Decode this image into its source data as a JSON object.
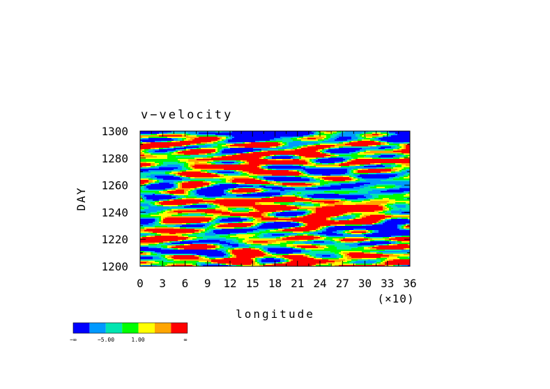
{
  "chart_data": {
    "type": "heatmap",
    "title": "v−velocity",
    "xlabel": "longitude",
    "ylabel": "DAY",
    "x_multiplier_label": "(×10)",
    "xlim": [
      0,
      36
    ],
    "ylim": [
      1200,
      1300
    ],
    "x_ticks": [
      "0",
      "3",
      "6",
      "9",
      "12",
      "15",
      "18",
      "21",
      "24",
      "27",
      "30",
      "33",
      "36"
    ],
    "y_ticks": [
      "1200",
      "1220",
      "1240",
      "1260",
      "1280",
      "1300"
    ],
    "grid": false,
    "colorbar": {
      "colors": [
        "#0000ff",
        "#0099ff",
        "#00e5b0",
        "#00ff00",
        "#ffff00",
        "#ffa500",
        "#ff0000"
      ],
      "tick_labels": [
        "−∞",
        "−5.00",
        "1.00",
        "∞"
      ]
    }
  }
}
